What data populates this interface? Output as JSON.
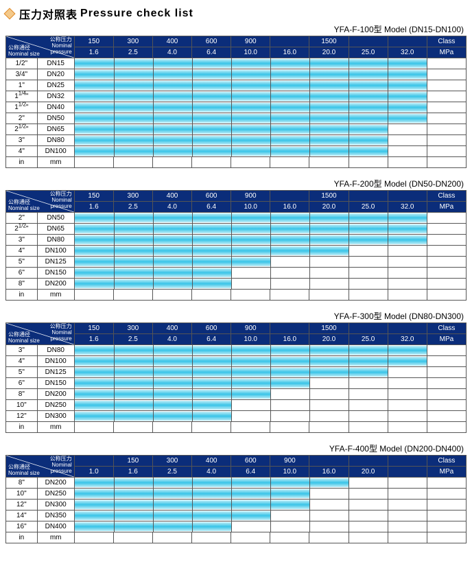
{
  "title_cn": "压力对照表",
  "title_en": "Pressure check list",
  "diamond_border": "#e08a2a",
  "diamond_fill": "#f4c98a",
  "header_bg": "#0b2d7a",
  "bar_gradient": [
    "#bfeef7",
    "#39c4e8",
    "#bfeef7"
  ],
  "corner_top_cn": "公称压力",
  "corner_top_en": "Nominal\npressure",
  "corner_bot_cn": "公称通径",
  "corner_bot_en": "Nominal size",
  "footer_in": "in",
  "footer_mm": "mm",
  "tables": [
    {
      "model": "YFA-F-100型  Model (DN15-DN100)",
      "class_row": [
        "150",
        "300",
        "400",
        "600",
        "900",
        "",
        "1500",
        "",
        ""
      ],
      "mpa_row": [
        "1.6",
        "2.5",
        "4.0",
        "6.4",
        "10.0",
        "16.0",
        "20.0",
        "25.0",
        "32.0"
      ],
      "class_label": "Class",
      "mpa_label": "MPa",
      "gap_after_index": 4,
      "rows": [
        {
          "in": "1/2\"",
          "dn": "DN15",
          "bar": 9
        },
        {
          "in": "3/4\"",
          "dn": "DN20",
          "bar": 9
        },
        {
          "in": "1\"",
          "dn": "DN25",
          "bar": 9
        },
        {
          "in": "1¼\"",
          "dn": "DN32",
          "bar": 9
        },
        {
          "in": "1½\"",
          "dn": "DN40",
          "bar": 9
        },
        {
          "in": "2\"",
          "dn": "DN50",
          "bar": 9
        },
        {
          "in": "2½\"",
          "dn": "DN65",
          "bar": 8
        },
        {
          "in": "3\"",
          "dn": "DN80",
          "bar": 8
        },
        {
          "in": "4\"",
          "dn": "DN100",
          "bar": 8
        }
      ]
    },
    {
      "model": "YFA-F-200型  Model (DN50-DN200)",
      "class_row": [
        "150",
        "300",
        "400",
        "600",
        "900",
        "",
        "1500",
        "",
        ""
      ],
      "mpa_row": [
        "1.6",
        "2.5",
        "4.0",
        "6.4",
        "10.0",
        "16.0",
        "20.0",
        "25.0",
        "32.0"
      ],
      "class_label": "Class",
      "mpa_label": "MPa",
      "gap_after_index": 4,
      "rows": [
        {
          "in": "2\"",
          "dn": "DN50",
          "bar": 9
        },
        {
          "in": "2½\"",
          "dn": "DN65",
          "bar": 9
        },
        {
          "in": "3\"",
          "dn": "DN80",
          "bar": 9
        },
        {
          "in": "4\"",
          "dn": "DN100",
          "bar": 7
        },
        {
          "in": "5\"",
          "dn": "DN125",
          "bar": 5
        },
        {
          "in": "6\"",
          "dn": "DN150",
          "bar": 4
        },
        {
          "in": "8\"",
          "dn": "DN200",
          "bar": 4
        }
      ]
    },
    {
      "model": "YFA-F-300型  Model (DN80-DN300)",
      "class_row": [
        "150",
        "300",
        "400",
        "600",
        "900",
        "",
        "1500",
        "",
        ""
      ],
      "mpa_row": [
        "1.6",
        "2.5",
        "4.0",
        "6.4",
        "10.0",
        "16.0",
        "20.0",
        "25.0",
        "32.0"
      ],
      "class_label": "Class",
      "mpa_label": "MPa",
      "gap_after_index": 4,
      "rows": [
        {
          "in": "3\"",
          "dn": "DN80",
          "bar": 9
        },
        {
          "in": "4\"",
          "dn": "DN100",
          "bar": 9
        },
        {
          "in": "5\"",
          "dn": "DN125",
          "bar": 8
        },
        {
          "in": "6\"",
          "dn": "DN150",
          "bar": 6
        },
        {
          "in": "8\"",
          "dn": "DN200",
          "bar": 5
        },
        {
          "in": "10\"",
          "dn": "DN250",
          "bar": 4
        },
        {
          "in": "12\"",
          "dn": "DN300",
          "bar": 4
        }
      ]
    },
    {
      "model": "YFA-F-400型  Model (DN200-DN400)",
      "class_row": [
        "",
        "150",
        "300",
        "400",
        "600",
        "900",
        "",
        "",
        ""
      ],
      "mpa_row": [
        "1.0",
        "1.6",
        "2.5",
        "4.0",
        "6.4",
        "10.0",
        "16.0",
        "20.0",
        ""
      ],
      "class_label": "Class",
      "mpa_label": "MPa",
      "gap_after_index": 5,
      "rows": [
        {
          "in": "8\"",
          "dn": "DN200",
          "bar": 7
        },
        {
          "in": "10\"",
          "dn": "DN250",
          "bar": 6
        },
        {
          "in": "12\"",
          "dn": "DN300",
          "bar": 6
        },
        {
          "in": "14\"",
          "dn": "DN350",
          "bar": 5
        },
        {
          "in": "16\"",
          "dn": "DN400",
          "bar": 4
        }
      ]
    }
  ]
}
